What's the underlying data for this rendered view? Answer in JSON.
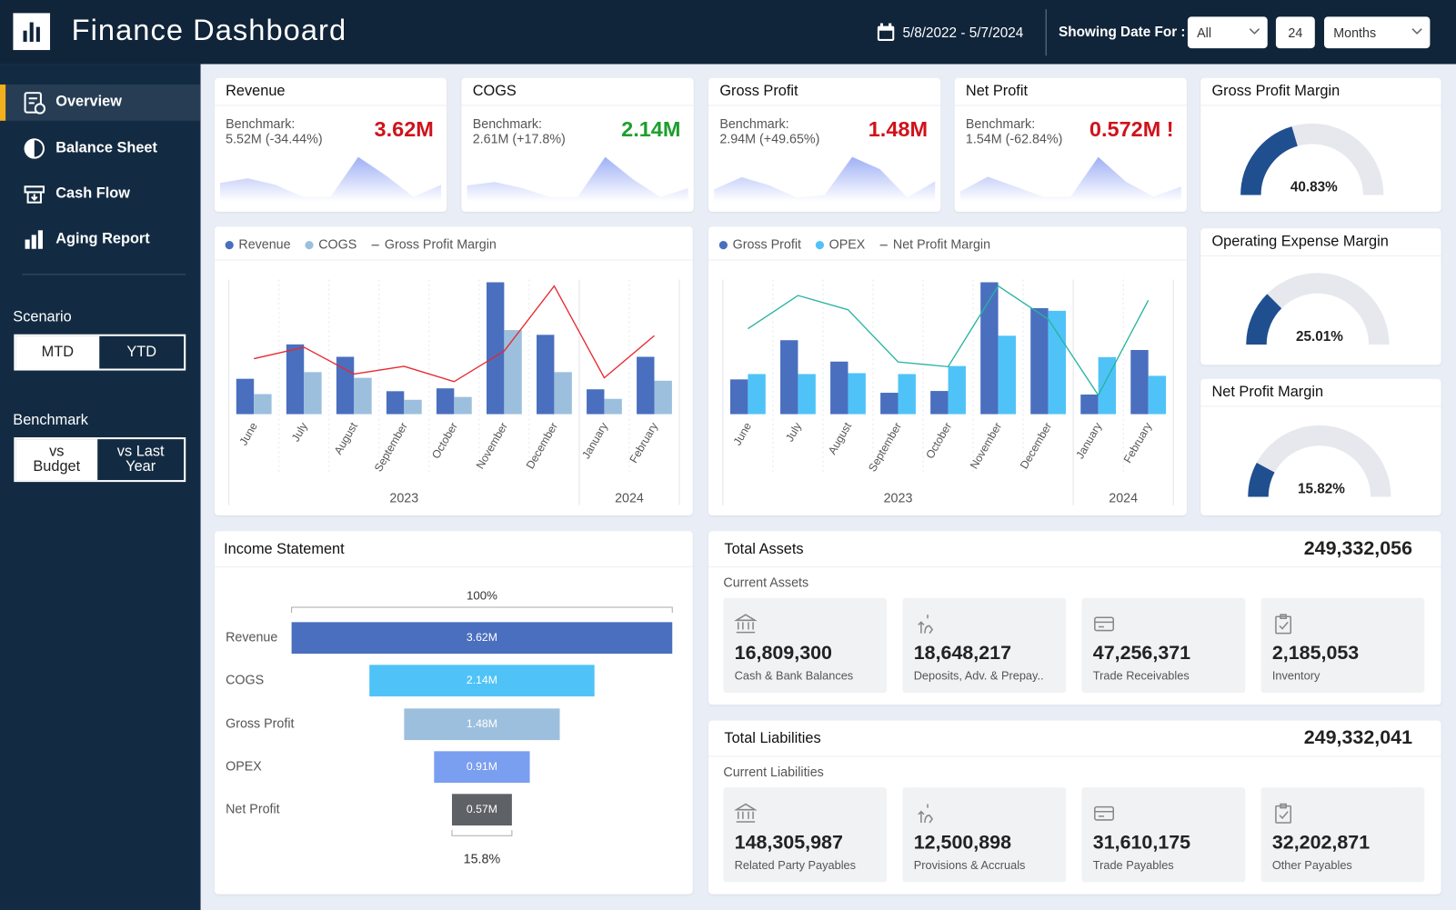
{
  "header": {
    "title": "Finance Dashboard",
    "date_range": "5/8/2022 - 5/7/2024",
    "showing_label": "Showing Date For :",
    "period_filter": "All",
    "period_count": 24,
    "period_unit": "Months"
  },
  "sidebar": {
    "nav": [
      "Overview",
      "Balance Sheet",
      "Cash Flow",
      "Aging Report"
    ],
    "scenario_label": "Scenario",
    "scenario_options": [
      "MTD",
      "YTD"
    ],
    "benchmark_label": "Benchmark",
    "benchmark_options": [
      "vs Budget",
      "vs Last Year"
    ]
  },
  "kpis": [
    {
      "title": "Revenue",
      "benchmark_label": "Benchmark:",
      "benchmark": "5.52M (-34.44%)",
      "value": "3.62M",
      "color": "#d0121b",
      "spark": [
        20,
        25,
        18,
        5,
        5,
        48,
        28,
        5,
        18
      ]
    },
    {
      "title": "COGS",
      "benchmark_label": "Benchmark:",
      "benchmark": "2.61M (+17.8%)",
      "value": "2.14M",
      "color": "#1e9e2e",
      "spark": [
        18,
        22,
        15,
        5,
        5,
        50,
        25,
        5,
        15
      ]
    },
    {
      "title": "Gross Profit",
      "benchmark_label": "Benchmark:",
      "benchmark": "2.94M (+49.65%)",
      "value": "1.48M",
      "color": "#d0121b",
      "spark": [
        15,
        30,
        20,
        5,
        8,
        55,
        40,
        5,
        25
      ]
    },
    {
      "title": "Net Profit",
      "benchmark_label": "Benchmark:",
      "benchmark": "1.54M (-62.84%)",
      "value": "0.572M !",
      "color": "#d0121b",
      "spark": [
        10,
        25,
        15,
        5,
        5,
        45,
        20,
        5,
        15
      ]
    }
  ],
  "gauges": [
    {
      "title": "Gross Profit Margin",
      "value": 40.83,
      "value_label": "40.83%"
    },
    {
      "title": "Operating Expense Margin",
      "value": 25.01,
      "value_label": "25.01%"
    },
    {
      "title": "Net Profit Margin",
      "value": 15.82,
      "value_label": "15.82%"
    }
  ],
  "chart_data": [
    {
      "type": "combo",
      "groups": [
        {
          "label": "2023",
          "categories": [
            "June",
            "July",
            "August",
            "September",
            "October",
            "November",
            "December"
          ]
        },
        {
          "label": "2024",
          "categories": [
            "January",
            "February"
          ]
        }
      ],
      "series": [
        {
          "name": "Revenue",
          "type": "bar",
          "color": "#4a6fbf",
          "values": [
            37,
            73,
            60,
            24,
            27,
            138,
            83,
            26,
            60
          ]
        },
        {
          "name": "COGS",
          "type": "bar",
          "color": "#9dbfde",
          "values": [
            21,
            44,
            38,
            15,
            18,
            88,
            44,
            16,
            35
          ]
        },
        {
          "name": "Gross Profit Margin",
          "type": "line",
          "color": "#e8262e",
          "values": [
            29,
            35,
            21,
            25,
            17,
            33,
            67,
            19,
            41
          ]
        }
      ]
    },
    {
      "type": "combo",
      "groups": [
        {
          "label": "2023",
          "categories": [
            "June",
            "July",
            "August",
            "September",
            "October",
            "November",
            "December"
          ]
        },
        {
          "label": "2024",
          "categories": [
            "January",
            "February"
          ]
        }
      ],
      "series": [
        {
          "name": "Gross Profit",
          "type": "bar",
          "color": "#4a6fbf",
          "values": [
            39,
            83,
            59,
            24,
            26,
            148,
            119,
            22,
            72
          ]
        },
        {
          "name": "OPEX",
          "type": "bar",
          "color": "#4fc3f7",
          "values": [
            45,
            45,
            46,
            45,
            54,
            88,
            116,
            64,
            43
          ]
        },
        {
          "name": "Net Profit Margin",
          "type": "line",
          "color": "#26b3a0",
          "values": [
            18,
            25,
            22,
            11,
            10,
            27,
            20,
            4,
            24
          ]
        }
      ]
    },
    {
      "type": "funnel",
      "title": "Income Statement",
      "top_label": "100%",
      "bottom_label": "15.8%",
      "categories": [
        "Revenue",
        "COGS",
        "Gross Profit",
        "OPEX",
        "Net Profit"
      ],
      "values": [
        3.62,
        2.14,
        1.48,
        0.91,
        0.57
      ],
      "value_labels": [
        "3.62M",
        "2.14M",
        "1.48M",
        "0.91M",
        "0.57M"
      ],
      "colors": [
        "#4a6fbf",
        "#4fc3f7",
        "#9dbfde",
        "#7a9ef0",
        "#5e6166"
      ]
    }
  ],
  "balance": [
    {
      "title": "Total Assets",
      "total": "249,332,056",
      "subtitle": "Current Assets",
      "items": [
        {
          "value": "16,809,300",
          "label": "Cash & Bank Balances"
        },
        {
          "value": "18,648,217",
          "label": "Deposits, Adv. & Prepay.."
        },
        {
          "value": "47,256,371",
          "label": "Trade Receivables"
        },
        {
          "value": "2,185,053",
          "label": "Inventory"
        }
      ]
    },
    {
      "title": "Total Liabilities",
      "total": "249,332,041",
      "subtitle": "Current Liabilities",
      "items": [
        {
          "value": "148,305,987",
          "label": "Related Party Payables"
        },
        {
          "value": "12,500,898",
          "label": "Provisions & Accruals"
        },
        {
          "value": "31,610,175",
          "label": "Trade Payables"
        },
        {
          "value": "32,202,871",
          "label": "Other Payables"
        }
      ]
    }
  ]
}
